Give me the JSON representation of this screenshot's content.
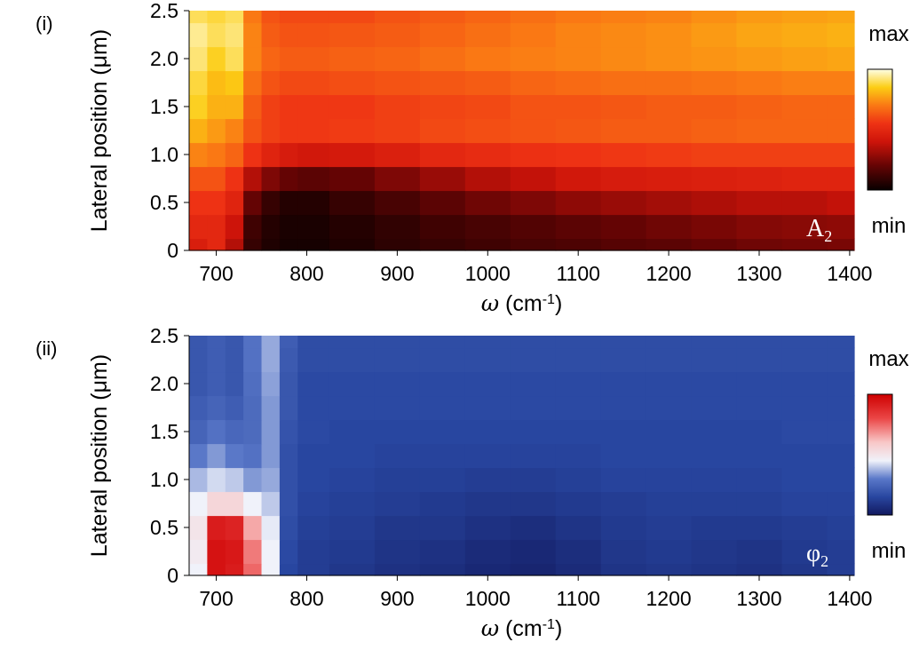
{
  "chart_data": [
    {
      "type": "heatmap",
      "panel_label": "(i)",
      "title": "",
      "xlabel_symbol": "ω",
      "xlabel_unit": "(cm-1)",
      "ylabel": "Lateral position (μm)",
      "xlim": [
        670,
        1405
      ],
      "ylim": [
        0,
        2.5
      ],
      "xticks": [
        700,
        800,
        900,
        1000,
        1100,
        1200,
        1300,
        1400
      ],
      "yticks": [
        0,
        0.5,
        1.0,
        1.5,
        2.0,
        2.5
      ],
      "ytick_labels": [
        "0",
        "0.5",
        "1.0",
        "1.5",
        "2.0",
        "2.5"
      ],
      "colormap": "hot",
      "colorbar": {
        "max_label": "max",
        "min_label": "min"
      },
      "annotation": {
        "symbol": "A",
        "subscript": "2"
      },
      "x": [
        680,
        700,
        720,
        740,
        760,
        780,
        800,
        850,
        900,
        950,
        1000,
        1050,
        1100,
        1150,
        1200,
        1250,
        1300,
        1350,
        1400
      ],
      "y": [
        0,
        0.25,
        0.5,
        0.75,
        1.0,
        1.25,
        1.5,
        1.75,
        2.0,
        2.25,
        2.5
      ],
      "values": [
        [
          0.45,
          0.5,
          0.35,
          0.1,
          0.05,
          0.03,
          0.03,
          0.05,
          0.08,
          0.1,
          0.12,
          0.14,
          0.15,
          0.17,
          0.18,
          0.2,
          0.22,
          0.23,
          0.24
        ],
        [
          0.5,
          0.5,
          0.4,
          0.12,
          0.06,
          0.04,
          0.04,
          0.06,
          0.09,
          0.12,
          0.14,
          0.16,
          0.18,
          0.2,
          0.22,
          0.24,
          0.26,
          0.27,
          0.28
        ],
        [
          0.55,
          0.55,
          0.48,
          0.2,
          0.1,
          0.06,
          0.06,
          0.1,
          0.14,
          0.18,
          0.22,
          0.25,
          0.28,
          0.3,
          0.32,
          0.34,
          0.36,
          0.36,
          0.38
        ],
        [
          0.62,
          0.62,
          0.55,
          0.35,
          0.25,
          0.2,
          0.18,
          0.2,
          0.25,
          0.3,
          0.35,
          0.38,
          0.42,
          0.44,
          0.45,
          0.46,
          0.47,
          0.48,
          0.48
        ],
        [
          0.72,
          0.7,
          0.66,
          0.55,
          0.48,
          0.44,
          0.42,
          0.43,
          0.46,
          0.5,
          0.52,
          0.54,
          0.55,
          0.56,
          0.57,
          0.58,
          0.58,
          0.58,
          0.58
        ],
        [
          0.8,
          0.76,
          0.72,
          0.62,
          0.58,
          0.56,
          0.56,
          0.57,
          0.58,
          0.6,
          0.61,
          0.62,
          0.63,
          0.64,
          0.64,
          0.65,
          0.66,
          0.66,
          0.66
        ],
        [
          0.86,
          0.8,
          0.8,
          0.64,
          0.58,
          0.56,
          0.56,
          0.56,
          0.58,
          0.59,
          0.6,
          0.62,
          0.62,
          0.63,
          0.64,
          0.64,
          0.65,
          0.66,
          0.66
        ],
        [
          0.88,
          0.82,
          0.84,
          0.68,
          0.62,
          0.6,
          0.6,
          0.61,
          0.62,
          0.63,
          0.64,
          0.66,
          0.67,
          0.68,
          0.68,
          0.69,
          0.7,
          0.71,
          0.71
        ],
        [
          0.92,
          0.86,
          0.9,
          0.72,
          0.66,
          0.64,
          0.64,
          0.65,
          0.66,
          0.68,
          0.7,
          0.71,
          0.72,
          0.73,
          0.74,
          0.75,
          0.76,
          0.77,
          0.78
        ],
        [
          0.94,
          0.9,
          0.92,
          0.72,
          0.64,
          0.62,
          0.62,
          0.63,
          0.64,
          0.66,
          0.68,
          0.7,
          0.72,
          0.73,
          0.74,
          0.76,
          0.78,
          0.79,
          0.8
        ],
        [
          0.9,
          0.88,
          0.9,
          0.7,
          0.62,
          0.6,
          0.6,
          0.6,
          0.62,
          0.64,
          0.66,
          0.68,
          0.7,
          0.71,
          0.72,
          0.74,
          0.76,
          0.77,
          0.78
        ]
      ]
    },
    {
      "type": "heatmap",
      "panel_label": "(ii)",
      "title": "",
      "xlabel_symbol": "ω",
      "xlabel_unit": "(cm-1)",
      "ylabel": "Lateral position (μm)",
      "xlim": [
        670,
        1405
      ],
      "ylim": [
        0,
        2.5
      ],
      "xticks": [
        700,
        800,
        900,
        1000,
        1100,
        1200,
        1300,
        1400
      ],
      "yticks": [
        0,
        0.5,
        1.0,
        1.5,
        2.0,
        2.5
      ],
      "ytick_labels": [
        "0",
        "0.5",
        "1.0",
        "1.5",
        "2.0",
        "2.5"
      ],
      "colormap": "blue-white-red",
      "colorbar": {
        "max_label": "max",
        "min_label": "min"
      },
      "annotation": {
        "symbol": "φ",
        "subscript": "2"
      },
      "x": [
        680,
        700,
        720,
        740,
        760,
        780,
        800,
        850,
        900,
        950,
        1000,
        1050,
        1100,
        1150,
        1200,
        1250,
        1300,
        1350,
        1400
      ],
      "y": [
        0,
        0.25,
        0.5,
        0.75,
        1.0,
        1.25,
        1.5,
        1.75,
        2.0,
        2.25,
        2.5
      ],
      "values": [
        [
          0.45,
          0.95,
          0.92,
          0.75,
          0.45,
          0.15,
          0.12,
          0.1,
          0.08,
          0.07,
          0.05,
          0.04,
          0.06,
          0.09,
          0.1,
          0.09,
          0.08,
          0.1,
          0.12
        ],
        [
          0.48,
          0.95,
          0.93,
          0.72,
          0.45,
          0.16,
          0.12,
          0.11,
          0.09,
          0.08,
          0.06,
          0.05,
          0.07,
          0.1,
          0.11,
          0.1,
          0.09,
          0.11,
          0.12
        ],
        [
          0.5,
          0.92,
          0.9,
          0.65,
          0.44,
          0.17,
          0.13,
          0.12,
          0.1,
          0.1,
          0.08,
          0.07,
          0.09,
          0.11,
          0.12,
          0.11,
          0.11,
          0.12,
          0.13
        ],
        [
          0.45,
          0.55,
          0.55,
          0.45,
          0.4,
          0.18,
          0.14,
          0.13,
          0.12,
          0.11,
          0.1,
          0.1,
          0.11,
          0.12,
          0.13,
          0.13,
          0.13,
          0.14,
          0.14
        ],
        [
          0.38,
          0.42,
          0.4,
          0.34,
          0.36,
          0.18,
          0.15,
          0.14,
          0.13,
          0.13,
          0.12,
          0.12,
          0.13,
          0.14,
          0.14,
          0.14,
          0.14,
          0.15,
          0.15
        ],
        [
          0.3,
          0.34,
          0.3,
          0.28,
          0.34,
          0.18,
          0.15,
          0.15,
          0.14,
          0.14,
          0.14,
          0.14,
          0.14,
          0.15,
          0.15,
          0.15,
          0.15,
          0.15,
          0.15
        ],
        [
          0.24,
          0.28,
          0.25,
          0.26,
          0.34,
          0.19,
          0.16,
          0.15,
          0.15,
          0.15,
          0.15,
          0.15,
          0.15,
          0.15,
          0.15,
          0.15,
          0.15,
          0.16,
          0.16
        ],
        [
          0.22,
          0.24,
          0.22,
          0.26,
          0.34,
          0.2,
          0.16,
          0.16,
          0.16,
          0.16,
          0.16,
          0.16,
          0.16,
          0.16,
          0.16,
          0.16,
          0.16,
          0.16,
          0.16
        ],
        [
          0.2,
          0.22,
          0.2,
          0.27,
          0.35,
          0.2,
          0.16,
          0.16,
          0.16,
          0.16,
          0.16,
          0.16,
          0.16,
          0.16,
          0.16,
          0.16,
          0.16,
          0.16,
          0.16
        ],
        [
          0.2,
          0.22,
          0.2,
          0.28,
          0.36,
          0.21,
          0.17,
          0.17,
          0.17,
          0.17,
          0.17,
          0.17,
          0.17,
          0.17,
          0.17,
          0.17,
          0.17,
          0.17,
          0.17
        ],
        [
          0.2,
          0.22,
          0.2,
          0.28,
          0.36,
          0.22,
          0.17,
          0.17,
          0.17,
          0.17,
          0.17,
          0.17,
          0.17,
          0.17,
          0.17,
          0.17,
          0.17,
          0.17,
          0.17
        ]
      ]
    }
  ]
}
